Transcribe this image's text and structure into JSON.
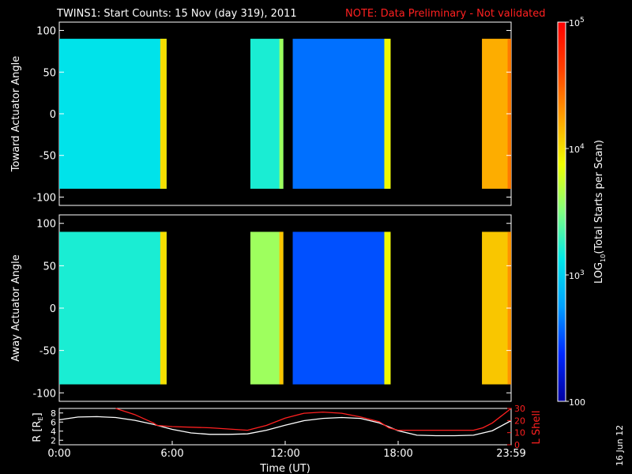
{
  "title": "TWINS1: Start Counts: 15 Nov (day 319), 2011",
  "note": "NOTE: Data Preliminary - Not validated",
  "date_stamp": "16 Jun 12",
  "chart_data": [
    {
      "type": "heatmap",
      "name": "toward",
      "ylabel": "Toward Actuator Angle",
      "ylim": [
        -110,
        110
      ],
      "yticks": [
        "100",
        "50",
        "0",
        "-50",
        "-100"
      ],
      "yticks_values": [
        100,
        50,
        0,
        -50,
        -100
      ],
      "xlim_hours": [
        0,
        24
      ],
      "data_blocks": [
        {
          "start_h": 0.0,
          "end_h": 5.7,
          "level_log10": 3.1,
          "edge_level": 4.0
        },
        {
          "start_h": 10.15,
          "end_h": 11.9,
          "level_log10": 3.2,
          "edge_level": 3.6
        },
        {
          "start_h": 12.4,
          "end_h": 17.6,
          "level_log10": 2.6,
          "edge_level": 3.9
        },
        {
          "start_h": 22.45,
          "end_h": 24.0,
          "level_log10": 4.2,
          "edge_level": 4.4
        }
      ]
    },
    {
      "type": "heatmap",
      "name": "away",
      "ylabel": "Away Actuator Angle",
      "ylim": [
        -110,
        110
      ],
      "yticks": [
        "100",
        "50",
        "0",
        "-50",
        "-100"
      ],
      "yticks_values": [
        100,
        50,
        0,
        -50,
        -100
      ],
      "xlim_hours": [
        0,
        24
      ],
      "data_blocks": [
        {
          "start_h": 0.0,
          "end_h": 5.7,
          "level_log10": 3.2,
          "edge_level": 4.0
        },
        {
          "start_h": 10.15,
          "end_h": 11.9,
          "level_log10": 3.6,
          "edge_level": 4.1
        },
        {
          "start_h": 12.4,
          "end_h": 17.6,
          "level_log10": 2.5,
          "edge_level": 3.9
        },
        {
          "start_h": 22.45,
          "end_h": 24.0,
          "level_log10": 4.1,
          "edge_level": 4.3
        }
      ]
    },
    {
      "type": "line",
      "name": "orbit",
      "ylabel": "R [RE]",
      "ylabel_parts": [
        "R [R",
        "E",
        "]"
      ],
      "ylabel2": "L Shell",
      "ylim": [
        1,
        9
      ],
      "yticks": [
        "8",
        "6",
        "4",
        "2"
      ],
      "yticks_values": [
        8,
        6,
        4,
        2
      ],
      "y2lim": [
        0,
        30
      ],
      "y2ticks": [
        "30",
        "20",
        "10",
        "0"
      ],
      "y2ticks_values": [
        30,
        20,
        10,
        0
      ],
      "xlabel": "Time (UT)",
      "xticks": [
        "0:00",
        "6:00",
        "12:00",
        "18:00",
        "23:59"
      ],
      "xticks_hours": [
        0,
        6,
        12,
        18,
        24
      ],
      "series": [
        {
          "color": "#ffffff",
          "x": [
            0,
            1,
            2,
            3,
            4,
            5,
            6,
            7,
            8,
            9,
            10,
            11,
            12,
            13,
            14,
            15,
            16,
            17,
            18,
            19,
            20,
            21,
            22,
            23,
            24
          ],
          "y": [
            6.5,
            7.1,
            7.2,
            7.0,
            6.4,
            5.5,
            4.4,
            3.6,
            3.3,
            3.3,
            3.4,
            4.2,
            5.3,
            6.3,
            6.8,
            7.0,
            6.8,
            5.8,
            4.1,
            3.1,
            3.0,
            3.0,
            3.1,
            4.1,
            6.3
          ]
        },
        {
          "color": "#ff2020",
          "axis": "y2",
          "x": [
            3.0,
            4.0,
            5.0,
            5.2,
            6.0,
            8.0,
            10.0,
            11.0,
            12.0,
            13.0,
            14.0,
            15.0,
            16.0,
            17.0,
            17.5,
            18.0,
            20.0,
            22.0,
            22.5,
            23.0,
            24.0
          ],
          "y": [
            30,
            25,
            18,
            16,
            15,
            14,
            12,
            16,
            22,
            26,
            27,
            26,
            23,
            19,
            14,
            12,
            12,
            12,
            14,
            18,
            30
          ]
        }
      ]
    }
  ],
  "colorbar": {
    "label_parts": [
      "LOG",
      "10",
      "(Total Starts per Scan)"
    ],
    "ticks": [
      {
        "base": "10",
        "exp": "5",
        "value": 5
      },
      {
        "base": "10",
        "exp": "4",
        "value": 4
      },
      {
        "base": "10",
        "exp": "3",
        "value": 3
      },
      {
        "base": "100",
        "exp": "",
        "value": 2
      }
    ],
    "range_log10": [
      2,
      5
    ],
    "colors": [
      "#0000a0",
      "#0028ff",
      "#00a0ff",
      "#00e8e8",
      "#80ff80",
      "#f0ff00",
      "#ffa000",
      "#ff4000",
      "#ff0000"
    ]
  }
}
